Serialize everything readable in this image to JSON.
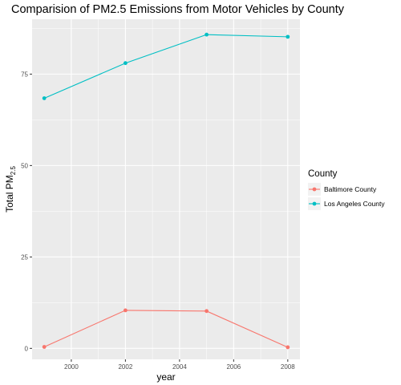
{
  "chart_data": {
    "type": "line",
    "title": "Comparision of PM2.5 Emissions from Motor Vehicles by County",
    "xlabel": "year",
    "ylabel": {
      "base": "Total PM",
      "subscript": "2.5"
    },
    "x": [
      1999,
      2002,
      2005,
      2008
    ],
    "xlim": [
      1998.55,
      2008.45
    ],
    "ylim": [
      -3,
      90
    ],
    "xticks": [
      2000,
      2002,
      2004,
      2006,
      2008
    ],
    "xtick_labels": [
      "2000",
      "2002",
      "2004",
      "2006",
      "2008"
    ],
    "yticks": [
      0,
      25,
      50,
      75
    ],
    "ytick_labels": [
      "0",
      "25",
      "50",
      "75"
    ],
    "grid": true,
    "legend": {
      "title": "County",
      "placement": "right"
    },
    "series": [
      {
        "name": "Baltimore County",
        "color": "#F8766D",
        "values": [
          0.4,
          10.4,
          10.2,
          0.3
        ]
      },
      {
        "name": "Los Angeles County",
        "color": "#00BFC4",
        "values": [
          68.4,
          78.0,
          85.8,
          85.2
        ]
      }
    ],
    "colors": {
      "panel": "#EBEBEB",
      "grid": "#FFFFFF",
      "axis_text": "#4D4D4D"
    }
  }
}
